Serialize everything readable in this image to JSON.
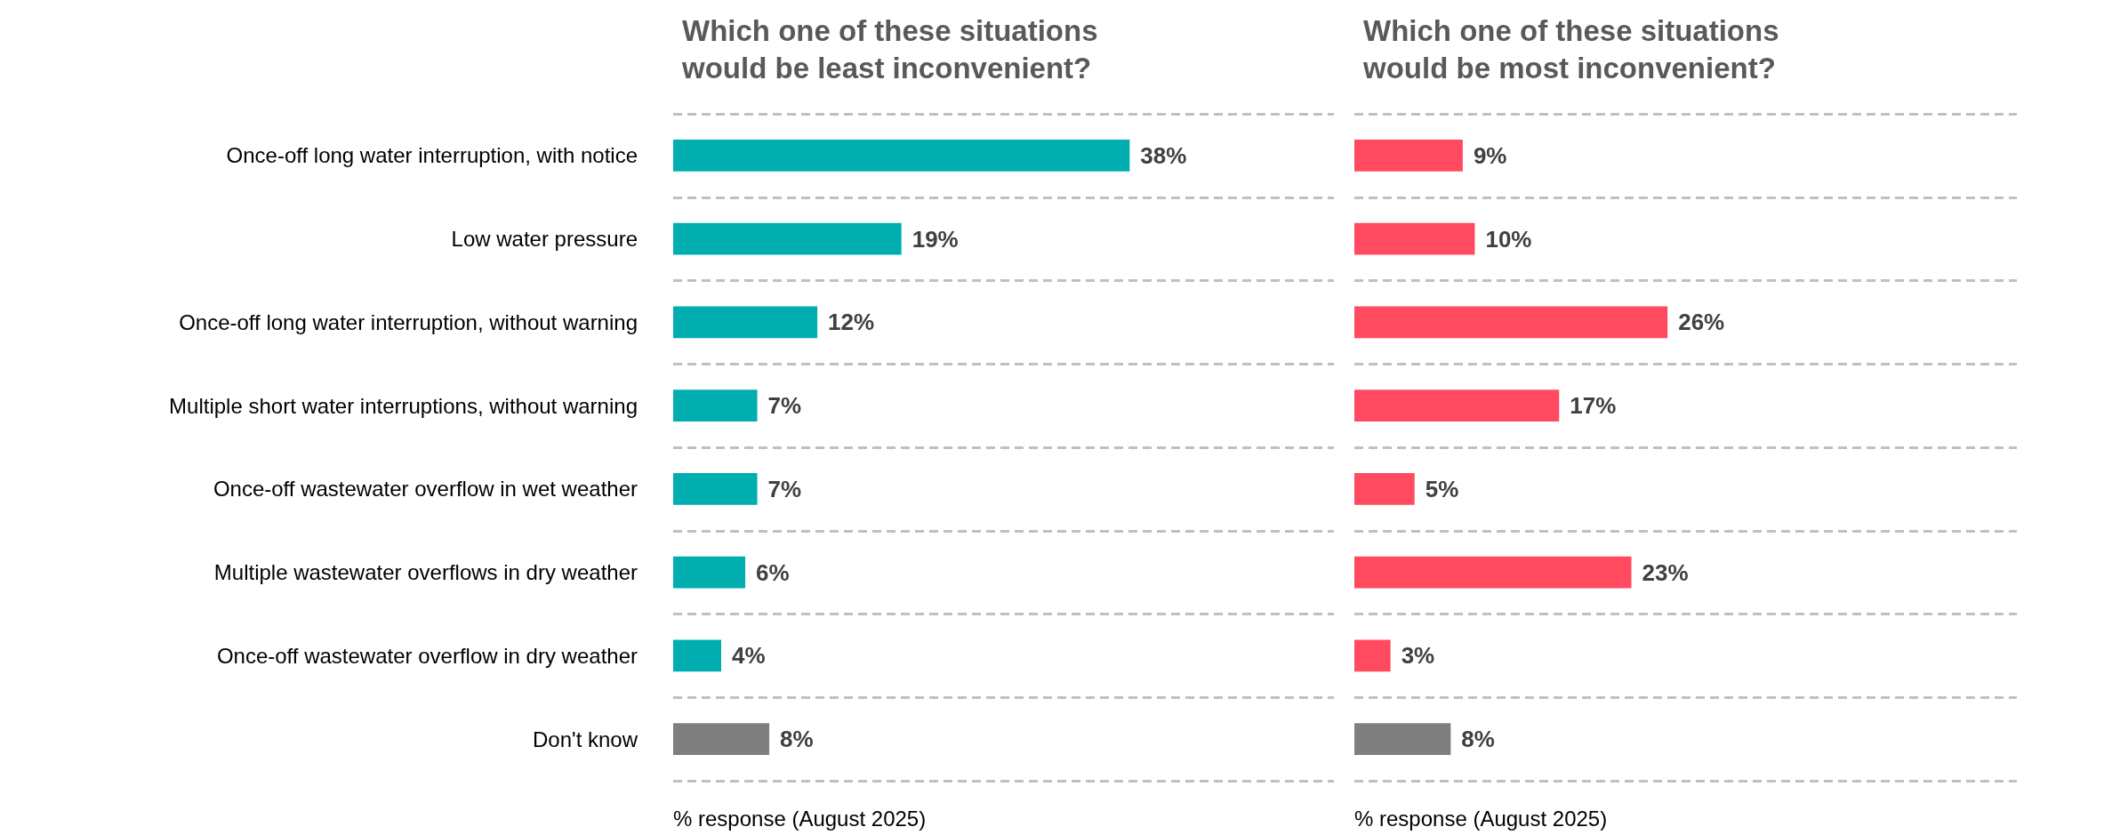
{
  "chart_data": [
    {
      "type": "bar",
      "orientation": "horizontal",
      "title": "Which one of these situations would be least inconvenient?",
      "xlabel": "% response (August 2025)",
      "categories": [
        "Once-off long water interruption, with notice",
        "Low water pressure",
        "Once-off long water interruption, without warning",
        "Multiple short water interruptions, without warning",
        "Once-off wastewater overflow in wet weather",
        "Multiple wastewater overflows in dry weather",
        "Once-off wastewater overflow in dry weather",
        "Don't know"
      ],
      "values": [
        38,
        19,
        12,
        7,
        7,
        6,
        4,
        8
      ],
      "colors": [
        "#00aeb0",
        "#00aeb0",
        "#00aeb0",
        "#00aeb0",
        "#00aeb0",
        "#00aeb0",
        "#00aeb0",
        "#7f7f7f"
      ],
      "value_labels": [
        "38%",
        "19%",
        "12%",
        "7%",
        "7%",
        "6%",
        "4%",
        "8%"
      ],
      "xlim": [
        0,
        55
      ],
      "grid": "y",
      "tick_labels": "y"
    },
    {
      "type": "bar",
      "orientation": "horizontal",
      "title": "Which one of these situations would be most inconvenient?",
      "xlabel": "% response (August 2025)",
      "values": [
        9,
        10,
        26,
        17,
        5,
        23,
        3,
        8
      ],
      "categories": [
        null,
        null,
        null,
        null,
        null,
        null,
        null,
        null
      ],
      "colors": [
        "#ff4a5f",
        "#ff4a5f",
        "#ff4a5f",
        "#ff4a5f",
        "#ff4a5f",
        "#ff4a5f",
        "#ff4a5f",
        "#7f7f7f"
      ],
      "value_labels": [
        "9%",
        "10%",
        "26%",
        "17%",
        "5%",
        "23%",
        "3%",
        "8%"
      ],
      "xlim": [
        0,
        55
      ],
      "grid": "y",
      "tick_labels": false
    }
  ]
}
